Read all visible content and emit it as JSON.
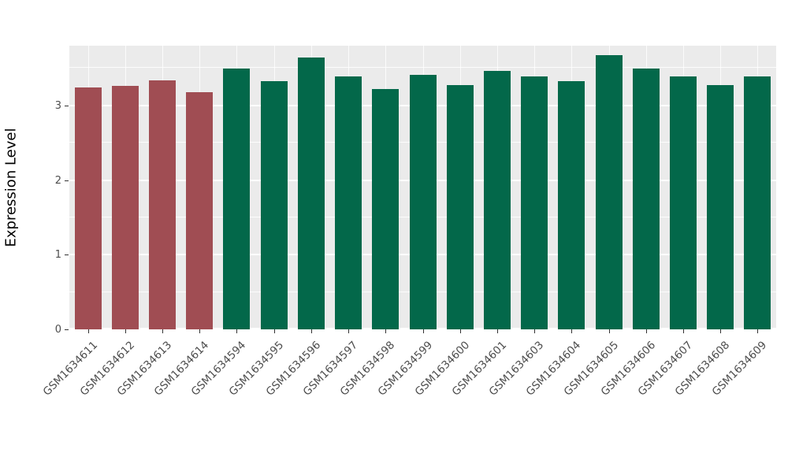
{
  "chart_data": {
    "type": "bar",
    "title": "",
    "xlabel": "",
    "ylabel": "Expression Level",
    "categories": [
      "GSM1634611",
      "GSM1634612",
      "GSM1634613",
      "GSM1634614",
      "GSM1634594",
      "GSM1634595",
      "GSM1634596",
      "GSM1634597",
      "GSM1634598",
      "GSM1634599",
      "GSM1634600",
      "GSM1634601",
      "GSM1634603",
      "GSM1634604",
      "GSM1634605",
      "GSM1634606",
      "GSM1634607",
      "GSM1634608",
      "GSM1634609"
    ],
    "values": [
      3.24,
      3.26,
      3.34,
      3.18,
      3.49,
      3.32,
      3.64,
      3.39,
      3.22,
      3.41,
      3.27,
      3.46,
      3.39,
      3.32,
      3.67,
      3.49,
      3.39,
      3.27,
      3.39
    ],
    "groups": [
      "red",
      "red",
      "red",
      "red",
      "green",
      "green",
      "green",
      "green",
      "green",
      "green",
      "green",
      "green",
      "green",
      "green",
      "green",
      "green",
      "green",
      "green",
      "green"
    ],
    "group_colors": {
      "red": "#A04D53",
      "green": "#03684A"
    },
    "ylim": [
      0,
      3.8
    ],
    "yticks": [
      0,
      1,
      2,
      3
    ],
    "grid": "on",
    "legend": "none",
    "panel_background": "#EBEBEB",
    "gridline_color": "#FFFFFF",
    "tick_label_color": "#4D4D4D"
  }
}
